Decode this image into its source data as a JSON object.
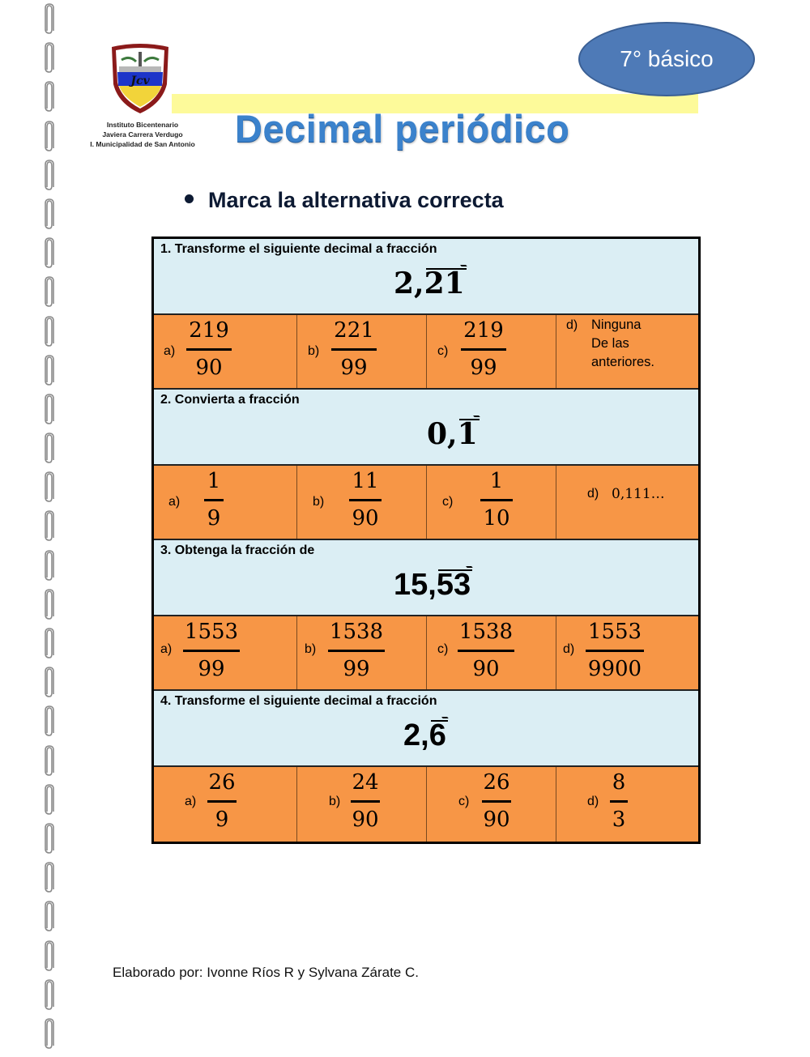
{
  "header": {
    "institution_lines": [
      "Instituto Bicentenario",
      "Javiera Carrera Verdugo",
      "I. Municipalidad  de San Antonio"
    ],
    "logo_icon": "school-crest-icon",
    "grade_badge": "7° básico",
    "title": "Decimal periódico",
    "instruction": "Marca la alternativa correcta"
  },
  "colors": {
    "question_bg": "#dbeef4",
    "options_bg": "#f79646",
    "title": "#3b82cc",
    "grade_badge": "#4e7ab7",
    "highlight_bar": "#fdfa9a"
  },
  "questions": [
    {
      "prompt": "1. Transforme el siguiente decimal a fracción",
      "decimal_int": "2,",
      "decimal_period": "21",
      "options": [
        {
          "label": "a)",
          "num": "219",
          "den": "90"
        },
        {
          "label": "b)",
          "num": "221",
          "den": "99"
        },
        {
          "label": "c)",
          "num": "219",
          "den": "99"
        },
        {
          "label": "d)",
          "lines": [
            "Ninguna",
            "De las",
            "anteriores."
          ]
        }
      ]
    },
    {
      "prompt": "2.  Convierta a fracción",
      "decimal_int": "0,",
      "decimal_period": "1",
      "options": [
        {
          "label": "a)",
          "num": "1",
          "den": "9"
        },
        {
          "label": "b)",
          "num": "11",
          "den": "90"
        },
        {
          "label": "c)",
          "num": "1",
          "den": "10"
        },
        {
          "label": "d)",
          "text": "0,111…"
        }
      ]
    },
    {
      "prompt": "3.  Obtenga la fracción de",
      "decimal_int": "15,",
      "decimal_period": "53",
      "options": [
        {
          "label": "a)",
          "num": "1553",
          "den": "99"
        },
        {
          "label": "b)",
          "num": "1538",
          "den": "99"
        },
        {
          "label": "c)",
          "num": "1538",
          "den": "90"
        },
        {
          "label": "d)",
          "num": "1553",
          "den": "9900"
        }
      ]
    },
    {
      "prompt": "4.  Transforme el siguiente decimal a fracción",
      "decimal_int": "2,",
      "decimal_period": "6",
      "options": [
        {
          "label": "a)",
          "num": "26",
          "den": "9"
        },
        {
          "label": "b)",
          "num": "24",
          "den": "90"
        },
        {
          "label": "c)",
          "num": "26",
          "den": "90"
        },
        {
          "label": "d)",
          "num": "8",
          "den": "3"
        }
      ]
    }
  ],
  "footer": "Elaborado por: Ivonne Ríos R  y Sylvana Zárate C.",
  "decoration": {
    "binder_icon": "paperclip-icon",
    "clip_count": 27
  }
}
